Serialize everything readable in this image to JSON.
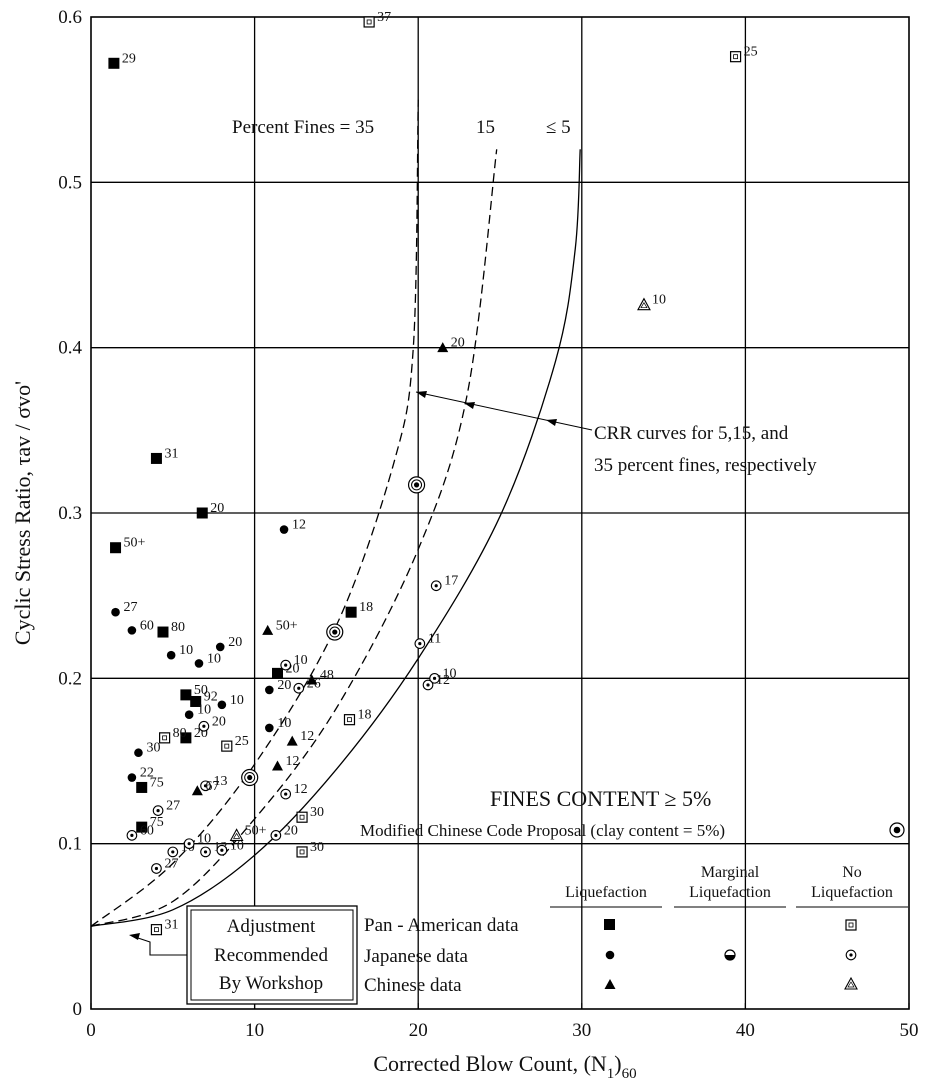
{
  "chart_data": {
    "type": "scatter",
    "xlabel": "Corrected Blow Count, (N",
    "xlabel_sub1": "1",
    "xlabel_close": ")",
    "xlabel_sub2": "60",
    "ylabel": "Cyclic Stress Ratio, τav / σvo'",
    "xlim": [
      0,
      50
    ],
    "ylim": [
      0,
      0.6
    ],
    "x_ticks": [
      0,
      10,
      20,
      30,
      40,
      50
    ],
    "y_ticks": [
      0,
      0.1,
      0.2,
      0.3,
      0.4,
      0.5,
      0.6
    ],
    "x_tick_labels": [
      "0",
      "10",
      "20",
      "30",
      "40",
      "50"
    ],
    "y_tick_labels": [
      "0",
      "0.1",
      "0.2",
      "0.3",
      "0.4",
      "0.5",
      "0.6"
    ],
    "grid": true,
    "annotations": {
      "percent_fines": "Percent Fines = 35",
      "fines_15": "15",
      "fines_5": "≤ 5",
      "crr_line1": "CRR curves for 5,15, and",
      "crr_line2": "35 percent fines, respectively",
      "fines_content": "FINES CONTENT ≥ 5%",
      "chinese_code": "Modified Chinese Code Proposal (clay content = 5%)",
      "adjustment_1": "Adjustment",
      "adjustment_2": "Recommended",
      "adjustment_3": "By Workshop"
    },
    "legend": {
      "col_headers": [
        "Liquefaction",
        "Marginal",
        "Liquefaction",
        "No",
        "Liquefaction"
      ],
      "rows": [
        "Pan - American data",
        "Japanese data",
        "Chinese data"
      ]
    },
    "curves": [
      {
        "fines": "35",
        "style": "dashed",
        "x": [
          0,
          5,
          10,
          15,
          18.5,
          19.7,
          20
        ],
        "y": [
          0.05,
          0.088,
          0.148,
          0.232,
          0.33,
          0.4,
          0.55
        ]
      },
      {
        "fines": "15",
        "style": "dashed",
        "x": [
          0,
          5,
          10,
          15,
          20,
          23,
          24.8
        ],
        "y": [
          0.05,
          0.065,
          0.115,
          0.182,
          0.278,
          0.372,
          0.52
        ]
      },
      {
        "fines": "≤5",
        "style": "solid",
        "x": [
          0,
          5,
          10,
          15,
          20,
          25,
          28.4,
          29.6,
          29.9
        ],
        "y": [
          0.05,
          0.06,
          0.093,
          0.145,
          0.212,
          0.298,
          0.392,
          0.46,
          0.52
        ]
      }
    ],
    "series": [
      {
        "name": "Pan - American data",
        "marker": "filled-square",
        "points": [
          {
            "x": 1.4,
            "y": 0.572,
            "label": "29"
          },
          {
            "x": 4,
            "y": 0.333,
            "label": "31"
          },
          {
            "x": 6.8,
            "y": 0.3,
            "label": "20"
          },
          {
            "x": 1.5,
            "y": 0.279,
            "label": "50+"
          },
          {
            "x": 4.4,
            "y": 0.228,
            "label": "80"
          },
          {
            "x": 15.9,
            "y": 0.24,
            "label": "18"
          },
          {
            "x": 5.8,
            "y": 0.19,
            "label": "50"
          },
          {
            "x": 6.4,
            "y": 0.186,
            "label": "92"
          },
          {
            "x": 5.8,
            "y": 0.164,
            "label": "20"
          },
          {
            "x": 11.4,
            "y": 0.203,
            "label": "20"
          },
          {
            "x": 3.1,
            "y": 0.134,
            "label": "75"
          },
          {
            "x": 3.1,
            "y": 0.11,
            "label": "75"
          }
        ]
      },
      {
        "name": "Pan - American data",
        "marker": "open-square",
        "points": [
          {
            "x": 17.0,
            "y": 0.597,
            "label": "37"
          },
          {
            "x": 39.4,
            "y": 0.576,
            "label": "25"
          },
          {
            "x": 4.5,
            "y": 0.164,
            "label": "80"
          },
          {
            "x": 8.3,
            "y": 0.159,
            "label": "25"
          },
          {
            "x": 15.8,
            "y": 0.175,
            "label": "18"
          },
          {
            "x": 12.9,
            "y": 0.116,
            "label": "30"
          },
          {
            "x": 12.9,
            "y": 0.095,
            "label": "30"
          },
          {
            "x": 4.0,
            "y": 0.048,
            "label": "31"
          }
        ]
      },
      {
        "name": "Japanese data",
        "marker": "filled-circle",
        "points": [
          {
            "x": 1.5,
            "y": 0.24,
            "label": "27"
          },
          {
            "x": 2.5,
            "y": 0.229,
            "label": "60"
          },
          {
            "x": 4.9,
            "y": 0.214,
            "label": "10"
          },
          {
            "x": 6.6,
            "y": 0.209,
            "label": "10"
          },
          {
            "x": 7.9,
            "y": 0.219,
            "label": "20"
          },
          {
            "x": 11.8,
            "y": 0.29,
            "label": "12"
          },
          {
            "x": 6.0,
            "y": 0.178,
            "label": "10"
          },
          {
            "x": 8.0,
            "y": 0.184,
            "label": "10"
          },
          {
            "x": 10.9,
            "y": 0.17,
            "label": "10"
          },
          {
            "x": 10.9,
            "y": 0.193,
            "label": "20"
          },
          {
            "x": 2.9,
            "y": 0.155,
            "label": "30"
          },
          {
            "x": 2.5,
            "y": 0.14,
            "label": "22"
          }
        ]
      },
      {
        "name": "Japanese data",
        "marker": "marginal-circle",
        "points": [
          {
            "x": 19.9,
            "y": 0.317
          },
          {
            "x": 14.9,
            "y": 0.228
          },
          {
            "x": 9.7,
            "y": 0.14
          }
        ]
      },
      {
        "name": "Japanese data",
        "marker": "open-circle",
        "points": [
          {
            "x": 21.1,
            "y": 0.256,
            "label": "17"
          },
          {
            "x": 20.1,
            "y": 0.221,
            "label": "11"
          },
          {
            "x": 21.0,
            "y": 0.2,
            "label": "10"
          },
          {
            "x": 20.6,
            "y": 0.196,
            "label": "12"
          },
          {
            "x": 11.9,
            "y": 0.208,
            "label": "10"
          },
          {
            "x": 12.7,
            "y": 0.194,
            "label": "26"
          },
          {
            "x": 6.9,
            "y": 0.171,
            "label": "20"
          },
          {
            "x": 7.0,
            "y": 0.135,
            "label": "13"
          },
          {
            "x": 11.9,
            "y": 0.13,
            "label": "12"
          },
          {
            "x": 11.3,
            "y": 0.105,
            "label": "20"
          },
          {
            "x": 4.1,
            "y": 0.12,
            "label": "27"
          },
          {
            "x": 2.5,
            "y": 0.105,
            "label": "60"
          },
          {
            "x": 5.0,
            "y": 0.095,
            "label": "10"
          },
          {
            "x": 6.0,
            "y": 0.1,
            "label": "10"
          },
          {
            "x": 7.0,
            "y": 0.095,
            "label": "13"
          },
          {
            "x": 8.0,
            "y": 0.096,
            "label": "10"
          },
          {
            "x": 4.0,
            "y": 0.085,
            "label": "27"
          }
        ]
      },
      {
        "name": "Chinese data",
        "marker": "filled-triangle",
        "points": [
          {
            "x": 21.5,
            "y": 0.4,
            "label": "20"
          },
          {
            "x": 10.8,
            "y": 0.229,
            "label": "50+"
          },
          {
            "x": 13.5,
            "y": 0.199,
            "label": "48"
          },
          {
            "x": 12.3,
            "y": 0.162,
            "label": "12"
          },
          {
            "x": 11.4,
            "y": 0.147,
            "label": "12"
          },
          {
            "x": 6.5,
            "y": 0.132,
            "label": "67"
          }
        ]
      },
      {
        "name": "Chinese data",
        "marker": "open-triangle",
        "points": [
          {
            "x": 33.8,
            "y": 0.426,
            "label": "10"
          },
          {
            "x": 8.9,
            "y": 0.105,
            "label": "50+"
          }
        ]
      }
    ]
  }
}
